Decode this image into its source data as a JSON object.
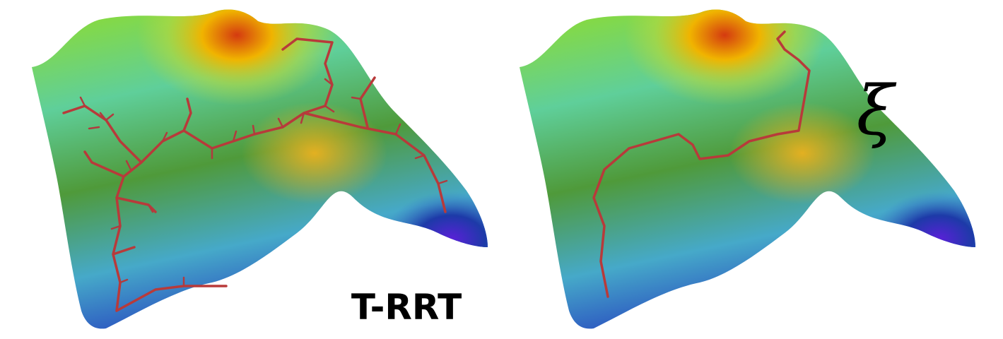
{
  "labels": {
    "left": "T-RRT",
    "right": "ξ"
  }
}
